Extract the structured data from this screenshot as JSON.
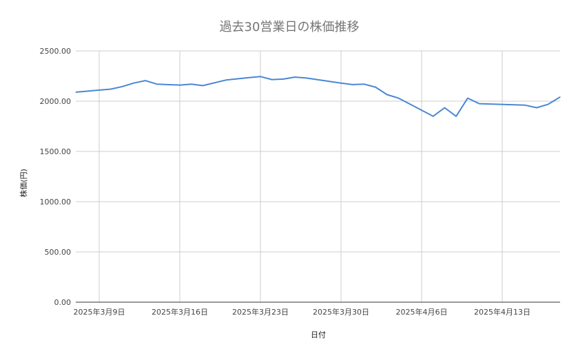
{
  "chart_data": {
    "type": "line",
    "title": "過去30営業日の株価推移",
    "xlabel": "日付",
    "ylabel": "株価(円)",
    "ylim": [
      0,
      2500
    ],
    "yticks": [
      "0.00",
      "500.00",
      "1000.00",
      "1500.00",
      "2000.00",
      "2500.00"
    ],
    "x_ticks": [
      {
        "date": "2025-03-09",
        "label": "2025年3月9日"
      },
      {
        "date": "2025-03-16",
        "label": "2025年3月16日"
      },
      {
        "date": "2025-03-23",
        "label": "2025年3月23日"
      },
      {
        "date": "2025-03-30",
        "label": "2025年3月30日"
      },
      {
        "date": "2025-04-06",
        "label": "2025年4月6日"
      },
      {
        "date": "2025-04-13",
        "label": "2025年4月13日"
      }
    ],
    "grid": true,
    "legend": "none",
    "series": [
      {
        "color": "#4a86d4",
        "points": [
          {
            "x": "2025-03-07",
            "y": 2090
          },
          {
            "x": "2025-03-08",
            "y": 2100
          },
          {
            "x": "2025-03-09",
            "y": 2110
          },
          {
            "x": "2025-03-10",
            "y": 2120
          },
          {
            "x": "2025-03-11",
            "y": 2145
          },
          {
            "x": "2025-03-12",
            "y": 2180
          },
          {
            "x": "2025-03-13",
            "y": 2205
          },
          {
            "x": "2025-03-14",
            "y": 2170
          },
          {
            "x": "2025-03-16",
            "y": 2160
          },
          {
            "x": "2025-03-17",
            "y": 2170
          },
          {
            "x": "2025-03-18",
            "y": 2155
          },
          {
            "x": "2025-03-20",
            "y": 2210
          },
          {
            "x": "2025-03-22",
            "y": 2235
          },
          {
            "x": "2025-03-23",
            "y": 2245
          },
          {
            "x": "2025-03-24",
            "y": 2215
          },
          {
            "x": "2025-03-25",
            "y": 2220
          },
          {
            "x": "2025-03-26",
            "y": 2240
          },
          {
            "x": "2025-03-27",
            "y": 2230
          },
          {
            "x": "2025-03-30",
            "y": 2180
          },
          {
            "x": "2025-03-31",
            "y": 2165
          },
          {
            "x": "2025-04-01",
            "y": 2170
          },
          {
            "x": "2025-04-02",
            "y": 2140
          },
          {
            "x": "2025-04-03",
            "y": 2065
          },
          {
            "x": "2025-04-04",
            "y": 2030
          },
          {
            "x": "2025-04-07",
            "y": 1850
          },
          {
            "x": "2025-04-08",
            "y": 1935
          },
          {
            "x": "2025-04-09",
            "y": 1850
          },
          {
            "x": "2025-04-10",
            "y": 2030
          },
          {
            "x": "2025-04-11",
            "y": 1975
          },
          {
            "x": "2025-04-15",
            "y": 1960
          },
          {
            "x": "2025-04-16",
            "y": 1935
          },
          {
            "x": "2025-04-17",
            "y": 1970
          },
          {
            "x": "2025-04-18",
            "y": 2040
          }
        ]
      }
    ]
  }
}
